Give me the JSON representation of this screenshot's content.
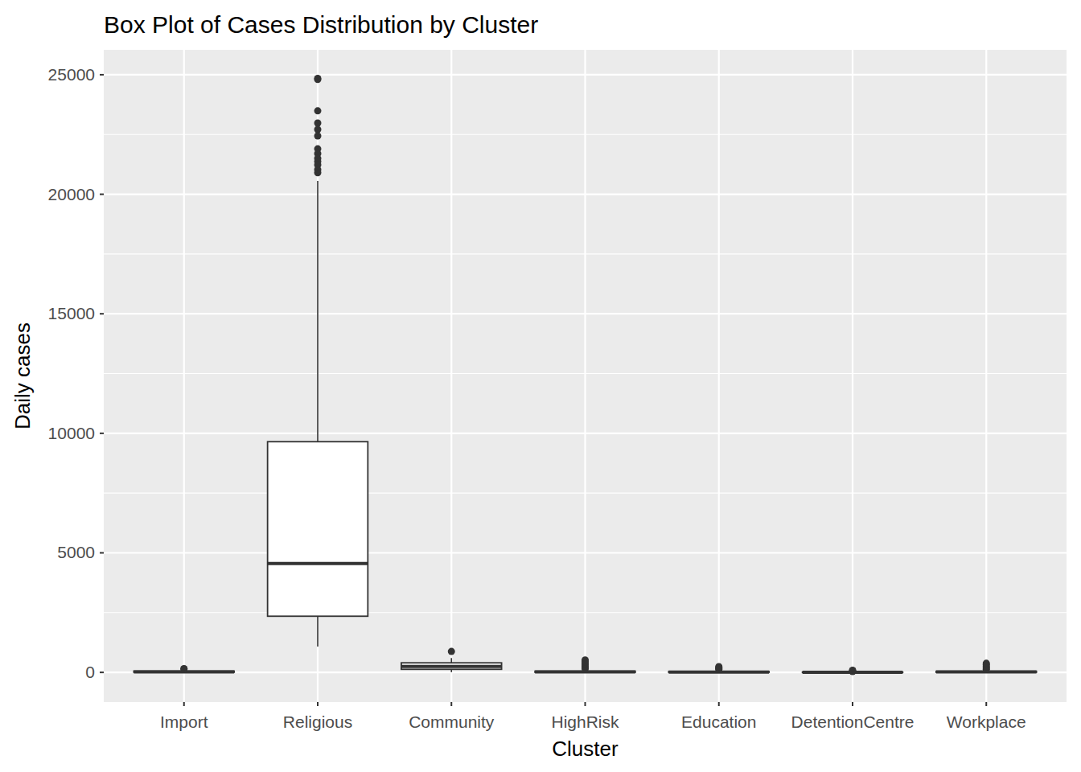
{
  "chart_data": {
    "type": "box",
    "title": "Box Plot of Cases Distribution by Cluster",
    "x_label": "Cluster",
    "y_label": "Daily cases",
    "categories": [
      "Import",
      "Religious",
      "Community",
      "HighRisk",
      "Education",
      "DetentionCentre",
      "Workplace"
    ],
    "boxes": [
      {
        "min": 0,
        "q1": 8,
        "median": 25,
        "q3": 55,
        "max": 120,
        "outliers": [
          140,
          160
        ]
      },
      {
        "min": 1080,
        "q1": 2350,
        "median": 4550,
        "q3": 9650,
        "max": 20560,
        "outliers": [
          24850,
          24800,
          23490,
          22980,
          22710,
          22440,
          21900,
          21700,
          21500,
          21370,
          21230,
          21030,
          20900
        ]
      },
      {
        "min": 10,
        "q1": 130,
        "median": 250,
        "q3": 400,
        "max": 600,
        "outliers": [
          875
        ]
      },
      {
        "min": 0,
        "q1": 5,
        "median": 20,
        "q3": 50,
        "max": 110,
        "outliers": [
          150,
          200,
          260,
          320,
          380,
          450,
          520
        ]
      },
      {
        "min": 0,
        "q1": 3,
        "median": 15,
        "q3": 40,
        "max": 95,
        "outliers": [
          120,
          160,
          200,
          240
        ]
      },
      {
        "min": 0,
        "q1": 0,
        "median": 2,
        "q3": 8,
        "max": 20,
        "outliers": [
          40,
          60,
          90
        ]
      },
      {
        "min": 0,
        "q1": 5,
        "median": 18,
        "q3": 45,
        "max": 105,
        "outliers": [
          130,
          180,
          250,
          320,
          380
        ]
      }
    ],
    "ylim": [
      -1240,
      26040
    ],
    "yticks": [
      0,
      5000,
      10000,
      15000,
      20000,
      25000
    ],
    "grid": true
  }
}
